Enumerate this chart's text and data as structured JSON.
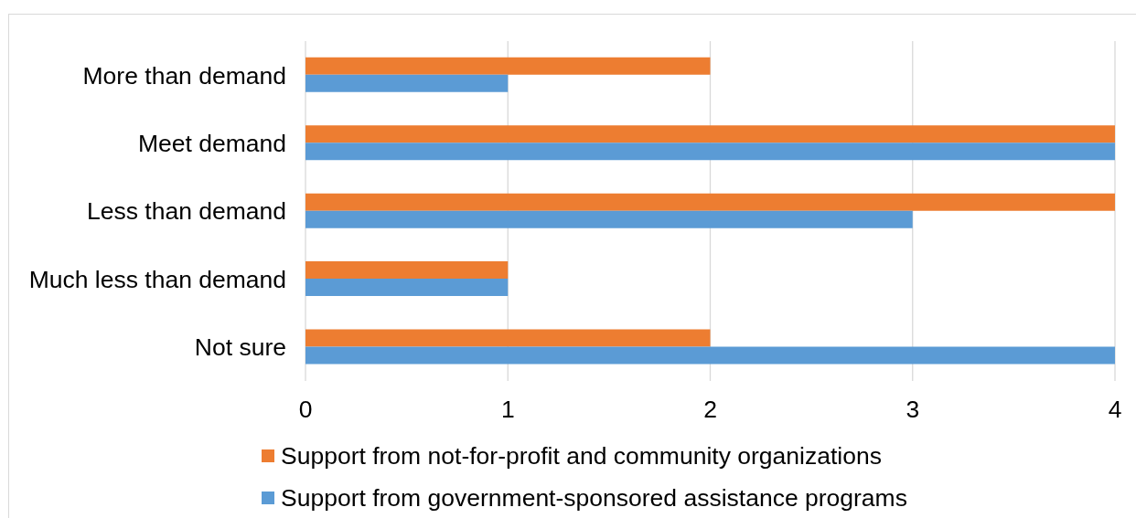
{
  "chart_data": {
    "type": "bar",
    "orientation": "horizontal",
    "categories": [
      "More than demand",
      "Meet demand",
      "Less than demand",
      "Much less than demand",
      "Not sure"
    ],
    "series": [
      {
        "name": "Support from not-for-profit and community organizations",
        "color": "#ed7d31",
        "values": [
          2,
          4,
          4,
          1,
          2
        ]
      },
      {
        "name": "Support from government-sponsored assistance programs",
        "color": "#5b9bd5",
        "values": [
          1,
          4,
          3,
          1,
          4
        ]
      }
    ],
    "xlim": [
      0,
      4
    ],
    "xticks": [
      0,
      1,
      2,
      3,
      4
    ],
    "grid": "x",
    "legend": "bottom"
  }
}
